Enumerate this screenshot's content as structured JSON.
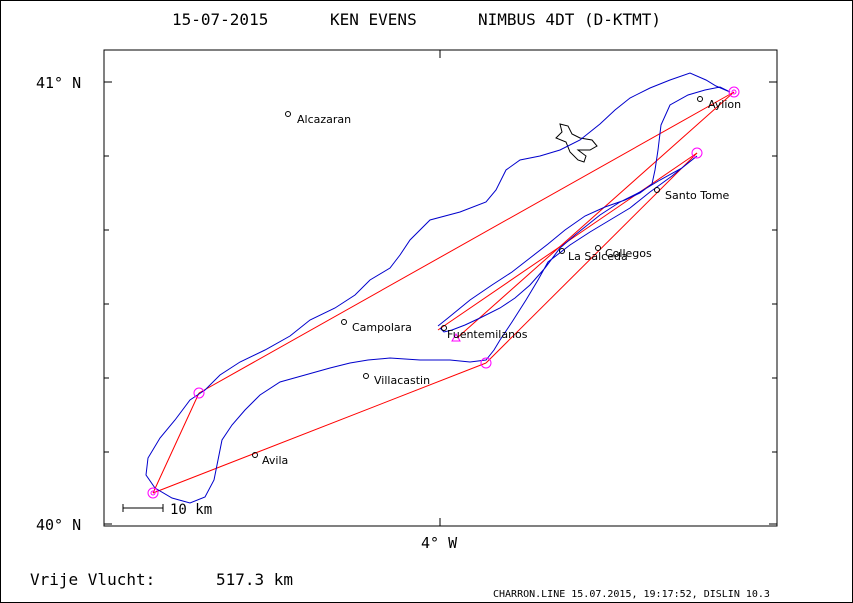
{
  "header": {
    "date": "15-07-2015",
    "pilot": "KEN EVENS",
    "glider": "NIMBUS 4DT (D-KTMT)"
  },
  "axes": {
    "lat_top_label": "41° N",
    "lat_bottom_label": "40° N",
    "lon_label": "4° W"
  },
  "scale_bar": {
    "label": "10 km"
  },
  "places": [
    {
      "name": "Alcazaran"
    },
    {
      "name": "Aylion"
    },
    {
      "name": "Santo Tome"
    },
    {
      "name": "La Salceda"
    },
    {
      "name": "Collegos"
    },
    {
      "name": "Campolara"
    },
    {
      "name": "Fuentemilanos"
    },
    {
      "name": "Villacastin"
    },
    {
      "name": "Avila"
    }
  ],
  "footer": {
    "distance_label": "Vrije Vlucht:",
    "distance_value": "517.3 km",
    "program_info": "CHARRON.LINE 15.07.2015, 19:17:52, DISLIN 10.3"
  },
  "colors": {
    "track": "#0000cc",
    "task_line": "#ff0000",
    "turnpoint": "#ff00ff"
  }
}
